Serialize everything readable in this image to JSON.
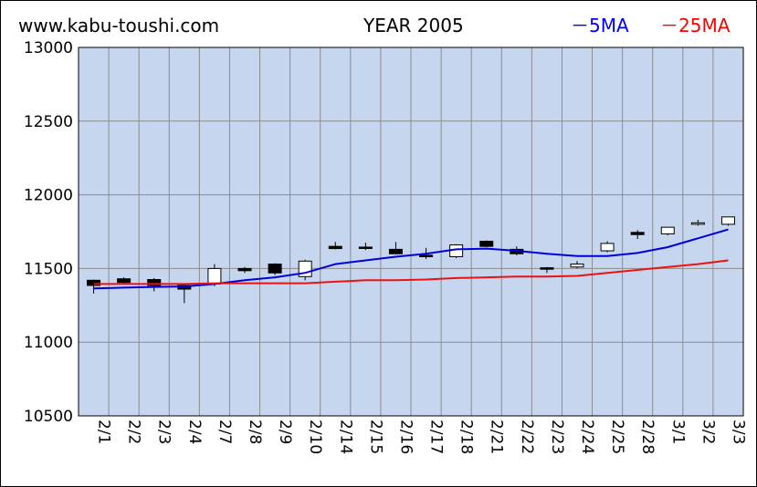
{
  "header": {
    "site": "www.kabu-toushi.com",
    "title": "YEAR 2005",
    "legend_5ma": "－5MA",
    "legend_25ma": "－25MA"
  },
  "colors": {
    "plot_bg": "#c6d6ee",
    "grid": "#8c8c8c",
    "ma5": "#0000dd",
    "ma25": "#ee1111",
    "candle_up": "#ffffff",
    "candle_down": "#000000"
  },
  "chart_data": {
    "type": "candlestick",
    "title": "YEAR 2005",
    "ylim": [
      10500,
      13000
    ],
    "yticks": [
      10500,
      11000,
      11500,
      12000,
      12500,
      13000
    ],
    "grid": true,
    "legend_placement": "top-right",
    "categories": [
      "2/1",
      "2/2",
      "2/3",
      "2/4",
      "2/7",
      "2/8",
      "2/9",
      "2/10",
      "2/14",
      "2/15",
      "2/16",
      "2/17",
      "2/18",
      "2/21",
      "2/22",
      "2/23",
      "2/24",
      "2/25",
      "2/28",
      "3/1",
      "3/2",
      "3/3"
    ],
    "candles": [
      {
        "open": 11420,
        "high": 11425,
        "low": 11330,
        "close": 11385
      },
      {
        "open": 11430,
        "high": 11440,
        "low": 11395,
        "close": 11405
      },
      {
        "open": 11425,
        "high": 11435,
        "low": 11345,
        "close": 11385
      },
      {
        "open": 11385,
        "high": 11390,
        "low": 11265,
        "close": 11360
      },
      {
        "open": 11395,
        "high": 11530,
        "low": 11380,
        "close": 11500
      },
      {
        "open": 11500,
        "high": 11510,
        "low": 11470,
        "close": 11485
      },
      {
        "open": 11530,
        "high": 11535,
        "low": 11455,
        "close": 11470
      },
      {
        "open": 11445,
        "high": 11560,
        "low": 11420,
        "close": 11550
      },
      {
        "open": 11650,
        "high": 11680,
        "low": 11630,
        "close": 11635
      },
      {
        "open": 11645,
        "high": 11675,
        "low": 11625,
        "close": 11640
      },
      {
        "open": 11630,
        "high": 11680,
        "low": 11595,
        "close": 11600
      },
      {
        "open": 11590,
        "high": 11640,
        "low": 11565,
        "close": 11580
      },
      {
        "open": 11580,
        "high": 11665,
        "low": 11570,
        "close": 11660
      },
      {
        "open": 11685,
        "high": 11690,
        "low": 11645,
        "close": 11650
      },
      {
        "open": 11630,
        "high": 11650,
        "low": 11590,
        "close": 11600
      },
      {
        "open": 11505,
        "high": 11510,
        "low": 11470,
        "close": 11495
      },
      {
        "open": 11510,
        "high": 11550,
        "low": 11500,
        "close": 11530
      },
      {
        "open": 11620,
        "high": 11685,
        "low": 11610,
        "close": 11670
      },
      {
        "open": 11745,
        "high": 11760,
        "low": 11700,
        "close": 11730
      },
      {
        "open": 11735,
        "high": 11780,
        "low": 11725,
        "close": 11780
      },
      {
        "open": 11800,
        "high": 11830,
        "low": 11790,
        "close": 11810
      },
      {
        "open": 11800,
        "high": 11850,
        "low": 11790,
        "close": 11850
      }
    ],
    "series": [
      {
        "name": "5MA",
        "values": [
          11365,
          11370,
          11375,
          11378,
          11395,
          11420,
          11440,
          11470,
          11530,
          11555,
          11580,
          11600,
          11630,
          11635,
          11620,
          11600,
          11585,
          11585,
          11605,
          11645,
          11705,
          11765
        ]
      },
      {
        "name": "25MA",
        "values": [
          11395,
          11395,
          11395,
          11395,
          11400,
          11400,
          11400,
          11400,
          11410,
          11420,
          11420,
          11425,
          11435,
          11440,
          11445,
          11445,
          11450,
          11470,
          11490,
          11510,
          11530,
          11555
        ]
      }
    ]
  }
}
